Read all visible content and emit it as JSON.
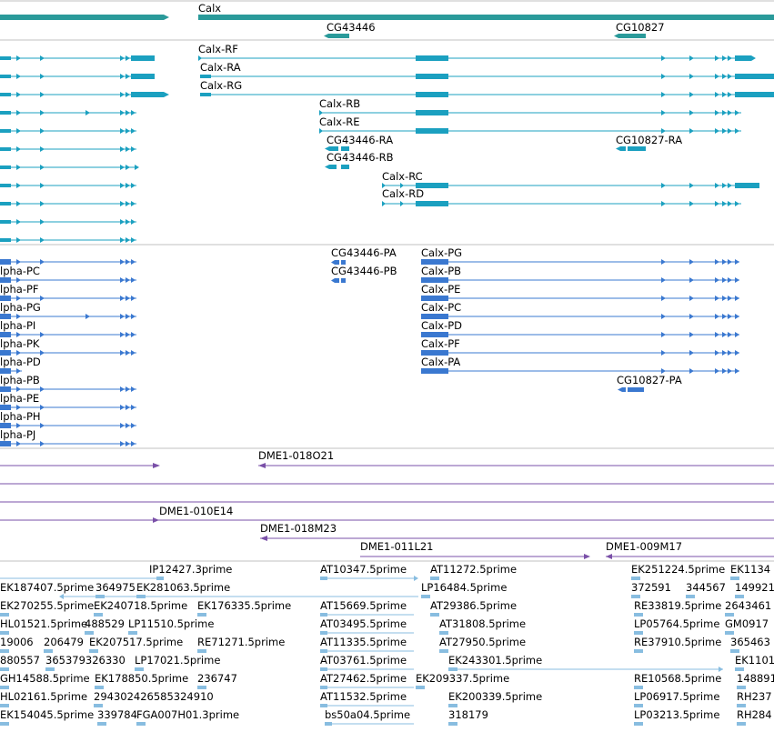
{
  "colors": {
    "gene": "#2a9a9a",
    "mrna": "#1ba0c0",
    "protein": "#3a78d0",
    "clone": "#7a50a8",
    "est": "#88bde0",
    "divider": "#c0c0c0"
  },
  "genes": [
    {
      "label": "Calx"
    },
    {
      "label": "CG43446"
    },
    {
      "label": "CG10827"
    }
  ],
  "transcripts": [
    {
      "label": "Calx-RF"
    },
    {
      "label": "Calx-RA"
    },
    {
      "label": "Calx-RG"
    },
    {
      "label": "Calx-RB"
    },
    {
      "label": "Calx-RE"
    },
    {
      "label": "CG43446-RA"
    },
    {
      "label": "CG10827-RA"
    },
    {
      "label": "CG43446-RB"
    },
    {
      "label": "Calx-RC"
    },
    {
      "label": "Calx-RD"
    }
  ],
  "proteins": [
    {
      "label": "CG43446-PA"
    },
    {
      "label": "Calx-PG"
    },
    {
      "label": "lpha-PC"
    },
    {
      "label": "CG43446-PB"
    },
    {
      "label": "Calx-PB"
    },
    {
      "label": "lpha-PF"
    },
    {
      "label": "Calx-PE"
    },
    {
      "label": "lpha-PG"
    },
    {
      "label": "Calx-PC"
    },
    {
      "label": "lpha-PI"
    },
    {
      "label": "Calx-PD"
    },
    {
      "label": "lpha-PK"
    },
    {
      "label": "Calx-PF"
    },
    {
      "label": "lpha-PD"
    },
    {
      "label": "Calx-PA"
    },
    {
      "label": "lpha-PB"
    },
    {
      "label": "CG10827-PA"
    },
    {
      "label": "lpha-PE"
    },
    {
      "label": "lpha-PH"
    },
    {
      "label": "lpha-PJ"
    }
  ],
  "clones": [
    {
      "label": "DME1-018O21"
    },
    {
      "label": "DME1-010E14"
    },
    {
      "label": "DME1-018M23"
    },
    {
      "label": "DME1-011L21"
    },
    {
      "label": "DME1-009M17"
    }
  ],
  "ests": [
    {
      "label": "IP12427.3prime"
    },
    {
      "label": "AT10347.5prime"
    },
    {
      "label": "AT11272.5prime"
    },
    {
      "label": "EK251224.5prime"
    },
    {
      "label": "EK1134"
    },
    {
      "label": "EK187407.5prime"
    },
    {
      "label": "364975"
    },
    {
      "label": "EK281063.5prime"
    },
    {
      "label": "LP16484.5prime"
    },
    {
      "label": "372591"
    },
    {
      "label": "344567"
    },
    {
      "label": "149921"
    },
    {
      "label": "EK270255.5prime"
    },
    {
      "label": "EK240718.5prime"
    },
    {
      "label": "EK176335.5prime"
    },
    {
      "label": "AT15669.5prime"
    },
    {
      "label": "AT29386.5prime"
    },
    {
      "label": "RE33819.5prime"
    },
    {
      "label": "2643461"
    },
    {
      "label": "HL01521.5prime"
    },
    {
      "label": "488529"
    },
    {
      "label": "LP11510.5prime"
    },
    {
      "label": "AT03495.5prime"
    },
    {
      "label": "AT31808.5prime"
    },
    {
      "label": "LP05764.5prime"
    },
    {
      "label": "GM0917"
    },
    {
      "label": "19006"
    },
    {
      "label": "206479"
    },
    {
      "label": "EK207517.5prime"
    },
    {
      "label": "RE71271.5prime"
    },
    {
      "label": "AT11335.5prime"
    },
    {
      "label": "AT27950.5prime"
    },
    {
      "label": "RE37910.5prime"
    },
    {
      "label": "365463"
    },
    {
      "label": "880557"
    },
    {
      "label": "365379326330"
    },
    {
      "label": "LP17021.5prime"
    },
    {
      "label": "AT03761.5prime"
    },
    {
      "label": "EK243301.5prime"
    },
    {
      "label": "EK1101"
    },
    {
      "label": "GH14588.5prime"
    },
    {
      "label": "EK178850.5prime"
    },
    {
      "label": "236747"
    },
    {
      "label": "AT27462.5prime"
    },
    {
      "label": "EK209337.5prime"
    },
    {
      "label": "RE10568.5prime"
    },
    {
      "label": "148891"
    },
    {
      "label": "HL02161.5prime"
    },
    {
      "label": "294302426585324910"
    },
    {
      "label": "AT11532.5prime"
    },
    {
      "label": "EK200339.5prime"
    },
    {
      "label": "LP06917.5prime"
    },
    {
      "label": "RH237"
    },
    {
      "label": "EK154045.5prime"
    },
    {
      "label": "339784"
    },
    {
      "label": "FGA007H01.3prime"
    },
    {
      "label": "bs50a04.5prime"
    },
    {
      "label": "318179"
    },
    {
      "label": "LP03213.5prime"
    },
    {
      "label": "RH284"
    }
  ]
}
